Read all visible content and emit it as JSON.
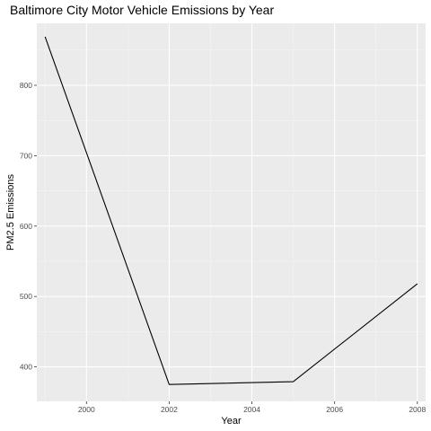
{
  "chart_data": {
    "type": "line",
    "title": "Baltimore City Motor Vehicle Emissions by Year",
    "xlabel": "Year",
    "ylabel": "PM2.5 Emissions",
    "x_ticks": [
      2000,
      2002,
      2004,
      2006,
      2008
    ],
    "y_ticks": [
      400,
      500,
      600,
      700,
      800
    ],
    "xlim": [
      1998.8,
      2008.2
    ],
    "ylim": [
      351,
      888
    ],
    "grid": true,
    "series": [
      {
        "color": "#000000",
        "x": [
          1999,
          2002,
          2005,
          2008
        ],
        "y": [
          869,
          375,
          379,
          518
        ]
      }
    ]
  },
  "theme": {
    "panel_background": "#ebebeb",
    "grid_major": "#ffffff",
    "grid_minor": "#f5f5f5",
    "tick_text_color": "#4d4d4d"
  }
}
